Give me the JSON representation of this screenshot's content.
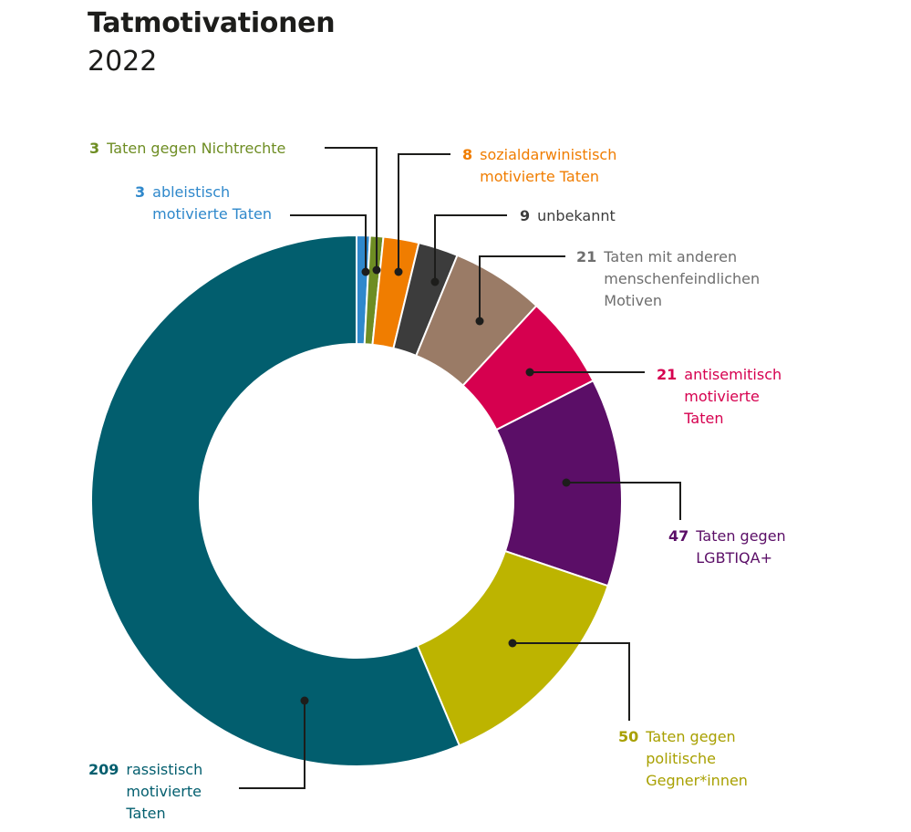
{
  "chart_data": {
    "type": "pie",
    "title": "Tatmotivationen",
    "subtitle": "2022",
    "donut": true,
    "slices": [
      {
        "value": 3,
        "lines": [
          "ableistisch",
          "motivierte Taten"
        ],
        "color": "#2f88cb"
      },
      {
        "value": 3,
        "lines": [
          "Taten gegen Nichtrechte"
        ],
        "color": "#6e8d23"
      },
      {
        "value": 8,
        "lines": [
          "sozialdarwinistisch",
          "motivierte Taten"
        ],
        "color": "#f07d00"
      },
      {
        "value": 9,
        "lines": [
          "unbekannt"
        ],
        "color": "#3c3c3c"
      },
      {
        "value": 21,
        "lines": [
          "Taten mit anderen",
          "menschenfeindlichen",
          "Motiven"
        ],
        "color": "#9a7b66",
        "label_color": "#6e6e6e"
      },
      {
        "value": 21,
        "lines": [
          "antisemitisch",
          "motivierte",
          "Taten"
        ],
        "color": "#d6004f"
      },
      {
        "value": 47,
        "lines": [
          "Taten gegen",
          "LGBTIQA+"
        ],
        "color": "#5b0e67"
      },
      {
        "value": 50,
        "lines": [
          "Taten gegen",
          "politische",
          "Gegner*innen"
        ],
        "color": "#bdb400",
        "label_color": "#a8a000"
      },
      {
        "value": 209,
        "lines": [
          "rassistisch",
          "motivierte",
          "Taten"
        ],
        "color": "#025e6e"
      }
    ]
  }
}
